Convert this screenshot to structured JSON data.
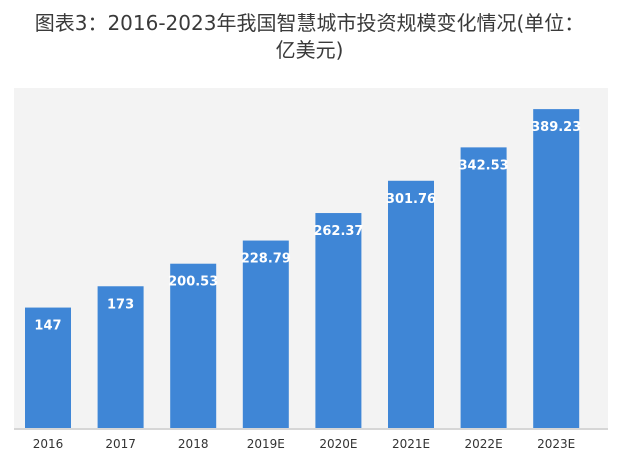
{
  "chart_data": {
    "type": "bar",
    "title_line1": "图表3：2016-2023年我国智慧城市投资规模变化情况(单位：",
    "title_line2": "亿美元)",
    "categories": [
      "2016",
      "2017",
      "2018",
      "2019E",
      "2020E",
      "2021E",
      "2022E",
      "2023E"
    ],
    "values": [
      147,
      173,
      200.53,
      228.79,
      262.37,
      301.76,
      342.53,
      389.23
    ],
    "value_labels": [
      "147",
      "173",
      "200.53",
      "228.79",
      "262.37",
      "301.76",
      "342.53",
      "389.23"
    ],
    "ylim": [
      0,
      415
    ],
    "bar_color": "#3f86d6",
    "label_color": "#ffffff",
    "grid": false,
    "legend": "none"
  }
}
